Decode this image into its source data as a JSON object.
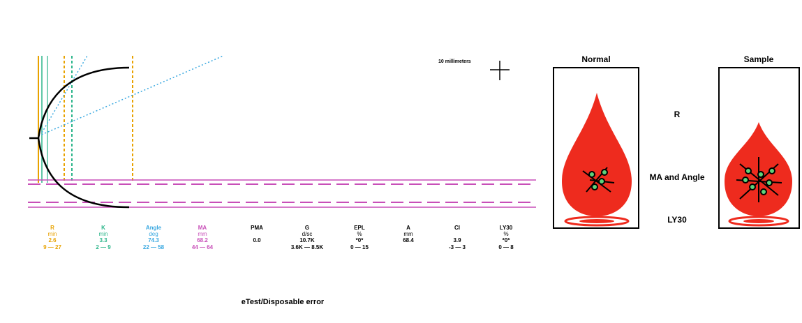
{
  "scale_label": "10 millimeters",
  "parameters": [
    {
      "name": "R",
      "unit": "min",
      "value": "2.6",
      "range": "9 — 27",
      "color": "#e8a200"
    },
    {
      "name": "K",
      "unit": "min",
      "value": "3.3",
      "range": "2 — 9",
      "color": "#2bb58a"
    },
    {
      "name": "Angle",
      "unit": "deg",
      "value": "74.3",
      "range": "22 — 58",
      "color": "#39a8e0"
    },
    {
      "name": "MA",
      "unit": "mm",
      "value": "68.2",
      "range": "44 — 64",
      "color": "#c84fb8"
    },
    {
      "name": "PMA",
      "value": "0.0",
      "color": "#000000"
    },
    {
      "name": "G",
      "unit": "d/sc",
      "value": "10.7K",
      "range": "3.6K — 8.5K",
      "color": "#000000"
    },
    {
      "name": "EPL",
      "unit": "%",
      "value": "*0*",
      "range": "0 — 15",
      "color": "#000000"
    },
    {
      "name": "A",
      "unit": "mm",
      "value": "68.4",
      "color": "#000000"
    },
    {
      "name": "CI",
      "value": "3.9",
      "range": "-3 — 3",
      "color": "#000000"
    },
    {
      "name": "LY30",
      "unit": "%",
      "value": "*0*",
      "range": "0 — 8",
      "color": "#000000"
    }
  ],
  "footer": "eTest/Disposable error",
  "diagram": {
    "normal": "Normal",
    "sample": "Sample",
    "labels": [
      "R",
      "MA and Angle",
      "LY30"
    ]
  }
}
